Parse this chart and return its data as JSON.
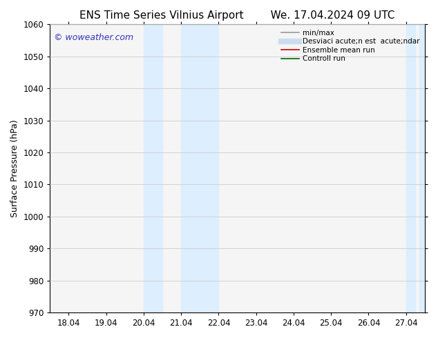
{
  "title_left": "ENS Time Series Vilnius Airport",
  "title_right": "We. 17.04.2024 09 UTC",
  "ylabel": "Surface Pressure (hPa)",
  "ylim": [
    970,
    1060
  ],
  "yticks": [
    970,
    980,
    990,
    1000,
    1010,
    1020,
    1030,
    1040,
    1050,
    1060
  ],
  "xtick_labels": [
    "18.04",
    "19.04",
    "20.04",
    "21.04",
    "22.04",
    "23.04",
    "24.04",
    "25.04",
    "26.04",
    "27.04"
  ],
  "xtick_positions": [
    0,
    1,
    2,
    3,
    4,
    5,
    6,
    7,
    8,
    9
  ],
  "xmin": -0.5,
  "xmax": 9.5,
  "bg_color": "#ffffff",
  "plot_bg_color": "#f5f5f5",
  "shaded_regions": [
    {
      "xmin": 2.0,
      "xmax": 2.5,
      "color": "#ddeeff"
    },
    {
      "xmin": 3.0,
      "xmax": 4.0,
      "color": "#ddeeff"
    },
    {
      "xmin": 9.0,
      "xmax": 9.25,
      "color": "#ddeeff"
    },
    {
      "xmin": 9.35,
      "xmax": 9.5,
      "color": "#ddeeff"
    }
  ],
  "watermark_text": "© woweather.com",
  "watermark_color": "#3333bb",
  "legend_entries": [
    {
      "label": "min/max",
      "color": "#999999",
      "lw": 1.2
    },
    {
      "label": "Desviaci acute;n est  acute;ndar",
      "color": "#ccddee",
      "lw": 6
    },
    {
      "label": "Ensemble mean run",
      "color": "#cc0000",
      "lw": 1.2
    },
    {
      "label": "Controll run",
      "color": "#006600",
      "lw": 1.2
    }
  ],
  "grid_color": "#cccccc",
  "tick_color": "#000000",
  "title_fontsize": 11,
  "label_fontsize": 9,
  "tick_fontsize": 8.5,
  "watermark_fontsize": 9
}
